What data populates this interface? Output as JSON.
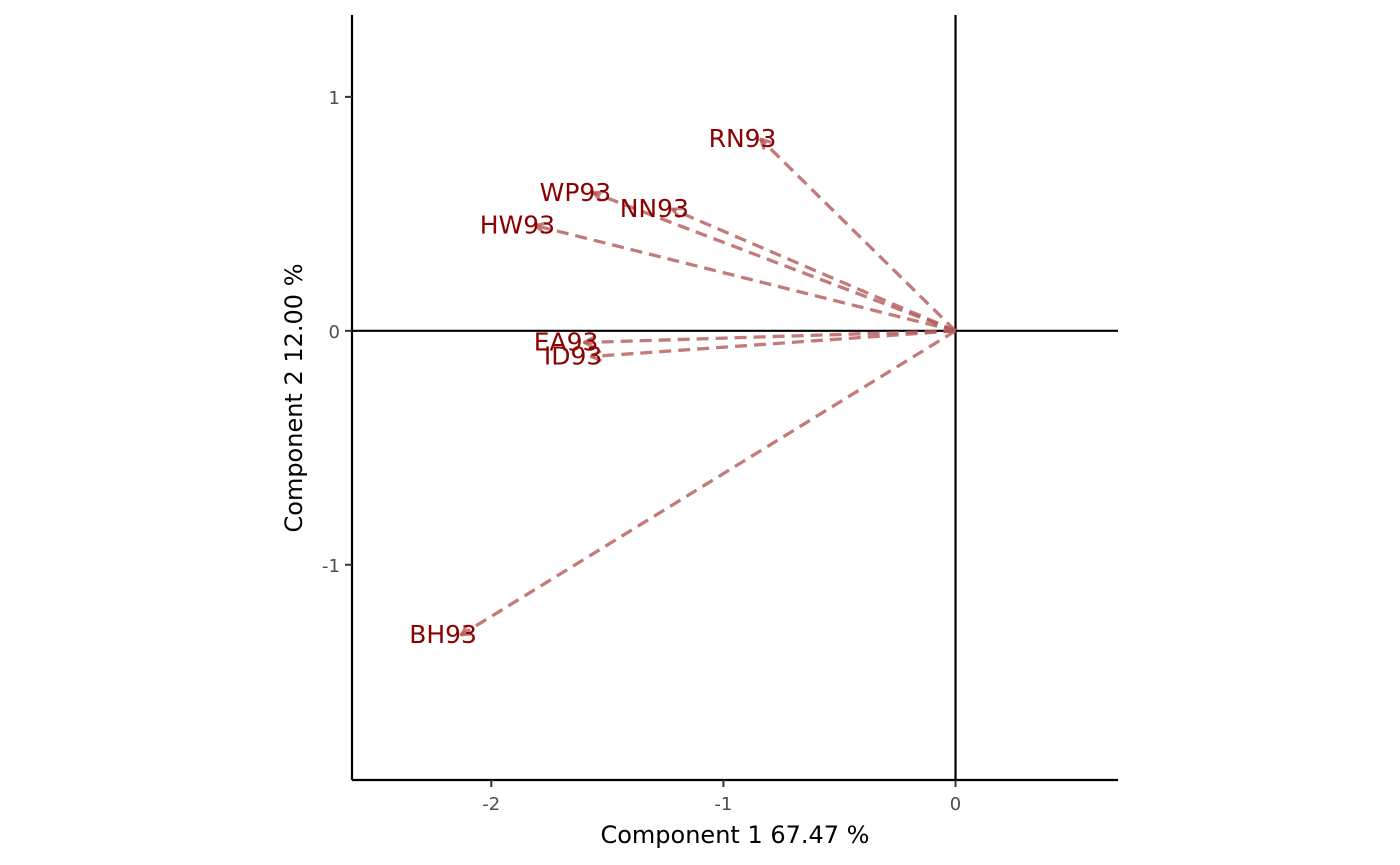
{
  "chart_data": {
    "type": "scatter",
    "subtype": "loading-vectors",
    "xlabel": "Component 1 67.47 %",
    "ylabel": "Component 2 12.00 %",
    "xlim": [
      -2.6,
      0.7
    ],
    "ylim": [
      -1.92,
      1.35
    ],
    "x_ticks": [
      -2,
      -1,
      0
    ],
    "x_tick_labels": [
      "-2",
      "-1",
      "0"
    ],
    "y_ticks": [
      1,
      0,
      -1
    ],
    "y_tick_labels": [
      "1",
      "0",
      "-1"
    ],
    "reference_lines": {
      "x": 0,
      "y": 0
    },
    "grid": false,
    "legend": "none",
    "arrow_color": "#b35959",
    "label_color": "#8b0000",
    "vectors": [
      {
        "label": "RN93",
        "x": -0.84,
        "y": 0.82
      },
      {
        "label": "WP93",
        "x": -1.56,
        "y": 0.59
      },
      {
        "label": "NN93",
        "x": -1.22,
        "y": 0.52
      },
      {
        "label": "HW93",
        "x": -1.81,
        "y": 0.45
      },
      {
        "label": "EA93",
        "x": -1.6,
        "y": -0.05
      },
      {
        "label": "ID93",
        "x": -1.57,
        "y": -0.11
      },
      {
        "label": "BH93",
        "x": -2.13,
        "y": -1.3
      }
    ]
  }
}
